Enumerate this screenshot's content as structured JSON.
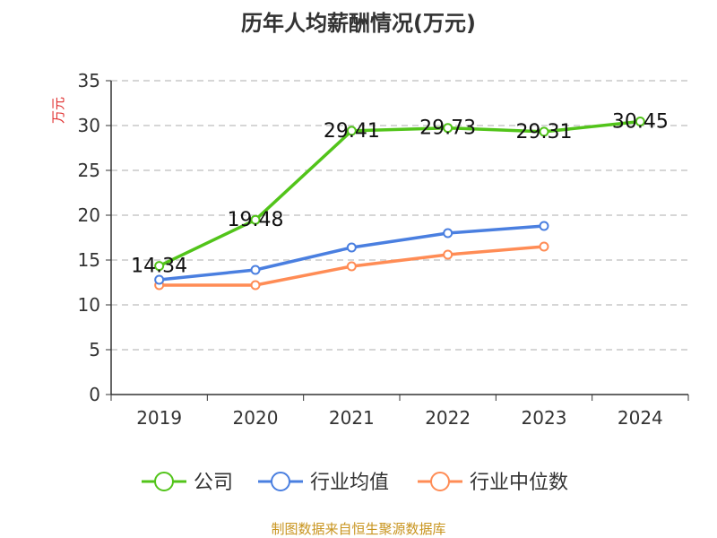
{
  "chart_data": {
    "type": "line",
    "title": "历年人均薪酬情况(万元)",
    "ylabel": "万元",
    "xlabel": "",
    "ylim": [
      0,
      35
    ],
    "yticks": [
      0,
      5,
      10,
      15,
      20,
      25,
      30,
      35
    ],
    "categories": [
      "2019",
      "2020",
      "2021",
      "2022",
      "2023",
      "2024"
    ],
    "grid": true,
    "legend_position": "bottom",
    "series": [
      {
        "name": "公司",
        "color": "#52c41a",
        "values": [
          14.34,
          19.48,
          29.41,
          29.73,
          29.31,
          30.45
        ],
        "labels": [
          "14.34",
          "19.48",
          "29.41",
          "29.73",
          "29.31",
          "30.45"
        ]
      },
      {
        "name": "行业均值",
        "color": "#4a7fe0",
        "values": [
          12.8,
          13.9,
          16.4,
          18.0,
          18.8,
          null
        ]
      },
      {
        "name": "行业中位数",
        "color": "#ff8c55",
        "values": [
          12.2,
          12.2,
          14.3,
          15.6,
          16.5,
          null
        ]
      }
    ]
  },
  "source": "制图数据来自恒生聚源数据库"
}
